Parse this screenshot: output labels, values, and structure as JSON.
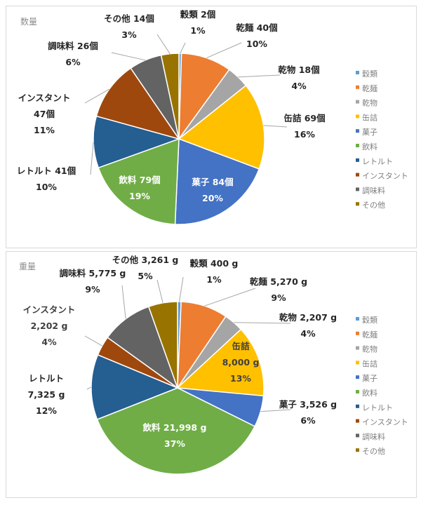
{
  "chart_data": [
    {
      "type": "pie",
      "title": "数量",
      "unit": "個",
      "categories": [
        "穀類",
        "乾麺",
        "乾物",
        "缶詰",
        "菓子",
        "飲料",
        "レトルト",
        "インスタント",
        "調味料",
        "その他"
      ],
      "values": [
        2,
        40,
        18,
        69,
        84,
        79,
        41,
        47,
        26,
        14
      ],
      "value_labels": [
        "穀類 2個",
        "乾麺 40個",
        "乾物 18個",
        "缶詰 69個",
        "菓子 84個",
        "飲料 79個",
        "レトルト 41個",
        "インスタント|47個",
        "調味料 26個",
        "その他 14個"
      ],
      "percent_labels": [
        "1%",
        "10%",
        "4%",
        "16%",
        "20%",
        "19%",
        "10%",
        "11%",
        "6%",
        "3%"
      ],
      "colors": [
        "#5B9BD5",
        "#ED7D31",
        "#A5A5A5",
        "#FFC000",
        "#4472C4",
        "#70AD47",
        "#255E91",
        "#9E480E",
        "#636363",
        "#997300"
      ],
      "legend": {
        "position": "right",
        "entries": [
          "穀類",
          "乾麺",
          "乾物",
          "缶詰",
          "菓子",
          "飲料",
          "レトルト",
          "インスタント",
          "調味料",
          "その他"
        ]
      }
    },
    {
      "type": "pie",
      "title": "重量",
      "unit": "g",
      "categories": [
        "穀類",
        "乾麺",
        "乾物",
        "缶詰",
        "菓子",
        "飲料",
        "レトルト",
        "インスタント",
        "調味料",
        "その他"
      ],
      "values": [
        400,
        5270,
        2207,
        8000,
        3526,
        21998,
        7325,
        2202,
        5775,
        3261
      ],
      "value_labels": [
        "穀類 400 g",
        "乾麺 5,270 g",
        "乾物 2,207 g",
        "缶詰|8,000 g",
        "菓子 3,526 g",
        "飲料 21,998 g",
        "レトルト|7,325 g",
        "インスタント|2,202 g",
        "調味料 5,775 g",
        "その他 3,261 g"
      ],
      "percent_labels": [
        "1%",
        "9%",
        "4%",
        "13%",
        "6%",
        "37%",
        "12%",
        "4%",
        "9%",
        "5%"
      ],
      "colors": [
        "#5B9BD5",
        "#ED7D31",
        "#A5A5A5",
        "#FFC000",
        "#4472C4",
        "#70AD47",
        "#255E91",
        "#9E480E",
        "#636363",
        "#997300"
      ],
      "legend": {
        "position": "right",
        "entries": [
          "穀類",
          "乾麺",
          "乾物",
          "缶詰",
          "菓子",
          "飲料",
          "レトルト",
          "インスタント",
          "調味料",
          "その他"
        ]
      }
    }
  ]
}
